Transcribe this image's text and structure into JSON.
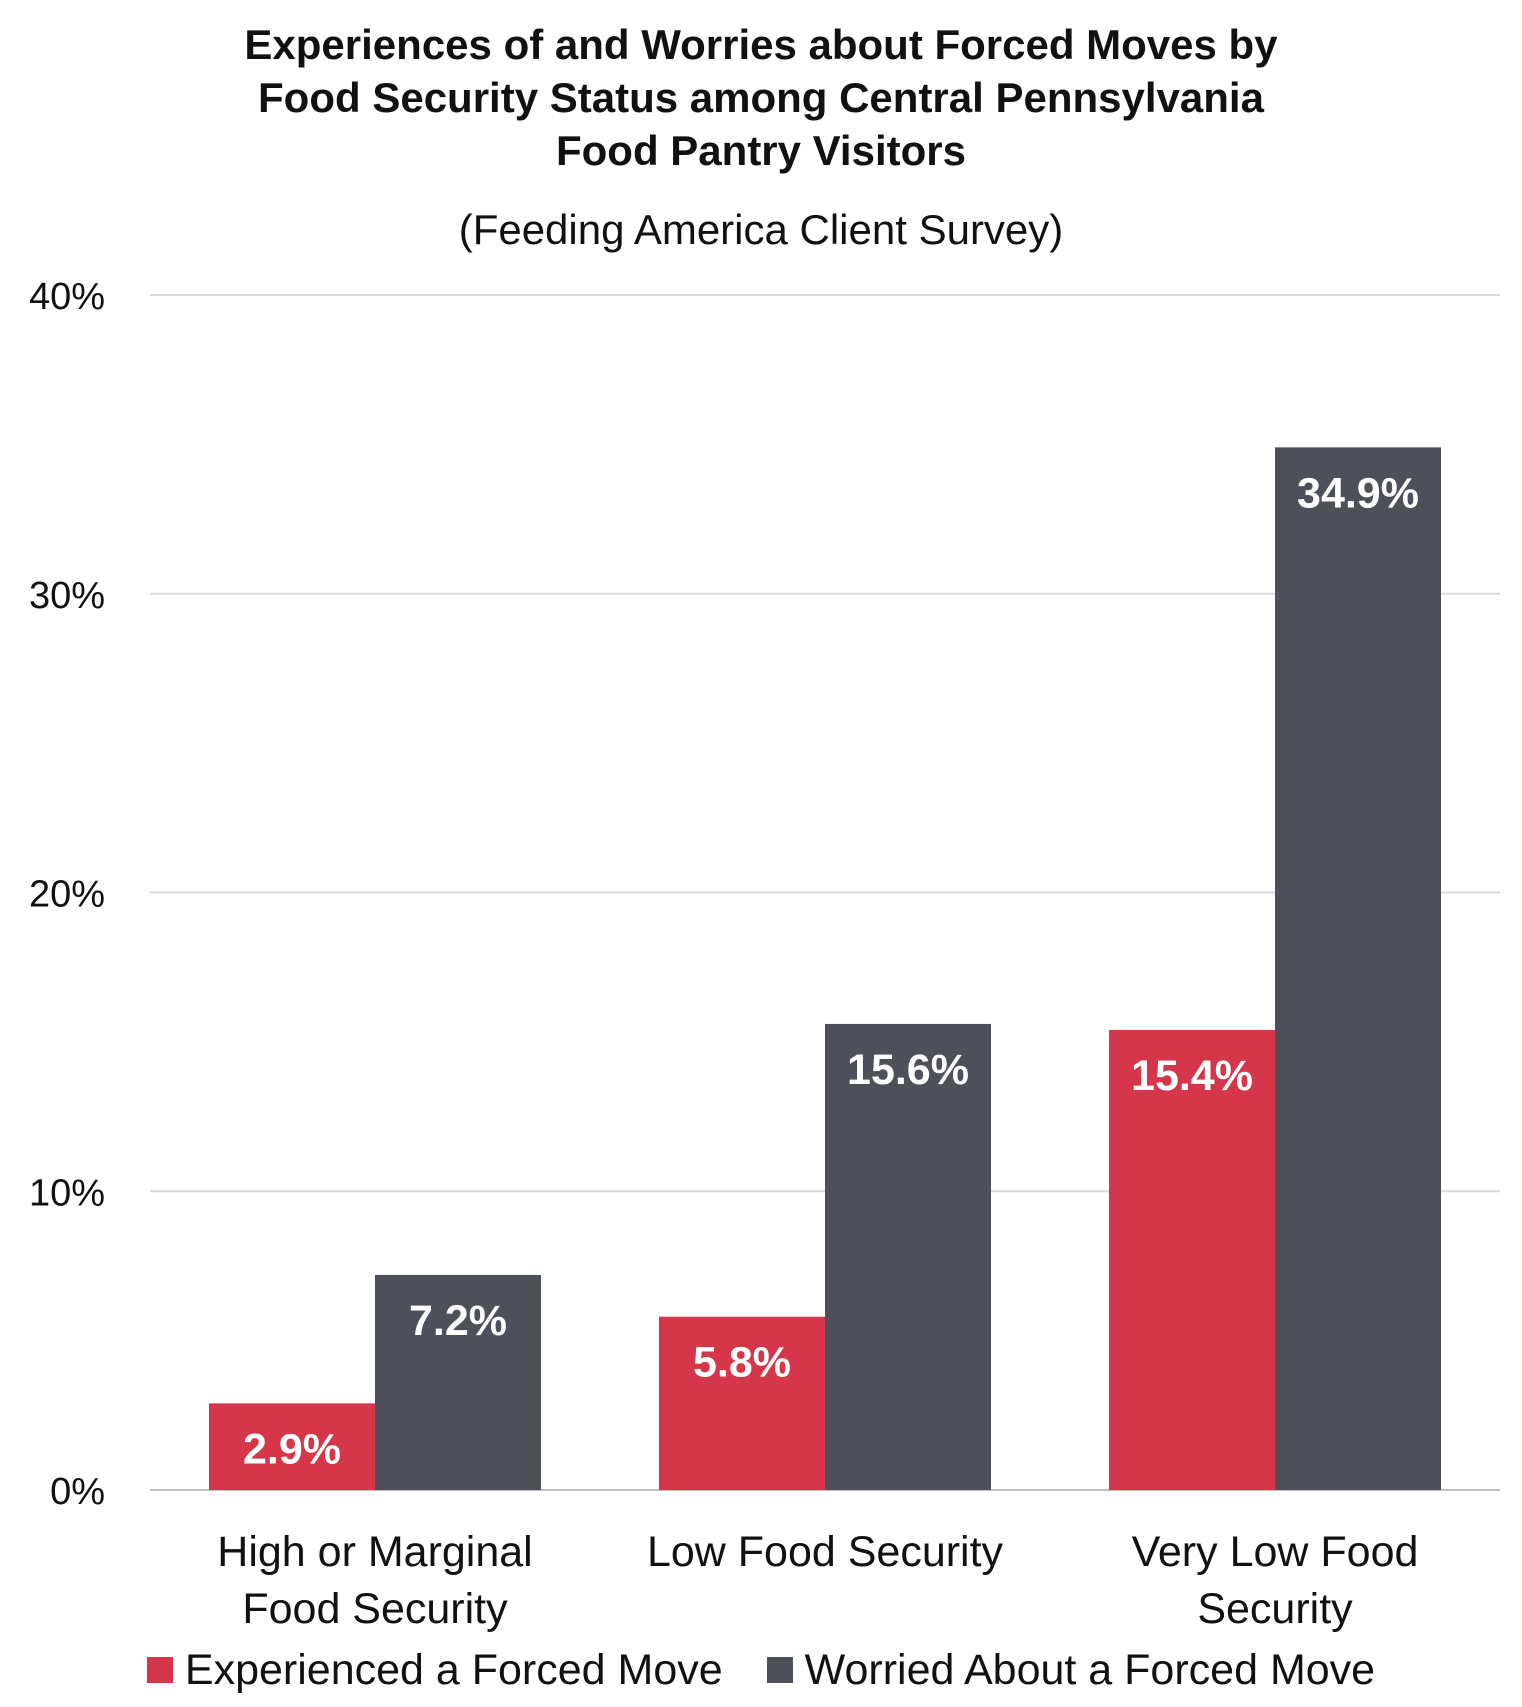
{
  "chart_data": {
    "type": "bar",
    "title": [
      "Experiences of and Worries about Forced Moves by",
      "Food Security Status among Central Pennsylvania",
      "Food Pantry Visitors"
    ],
    "subtitle": "(Feeding America Client Survey)",
    "categories": [
      [
        "High or Marginal",
        "Food Security"
      ],
      [
        "Low Food Security"
      ],
      [
        "Very Low Food",
        "Security"
      ]
    ],
    "series": [
      {
        "name": "Experienced a Forced Move",
        "values": [
          2.9,
          5.8,
          15.4
        ],
        "labels": [
          "2.9%",
          "5.8%",
          "15.4%"
        ],
        "color": "#d63649"
      },
      {
        "name": "Worried About a Forced Move",
        "values": [
          7.2,
          15.6,
          34.9
        ],
        "labels": [
          "7.2%",
          "15.6%",
          "34.9%"
        ],
        "color": "#4d4f59"
      }
    ],
    "ylim": [
      0,
      40
    ],
    "yticks": [
      0,
      10,
      20,
      30,
      40
    ],
    "ytick_labels": [
      "0%",
      "10%",
      "20%",
      "30%",
      "40%"
    ],
    "grid": true,
    "legend_position": "bottom"
  }
}
